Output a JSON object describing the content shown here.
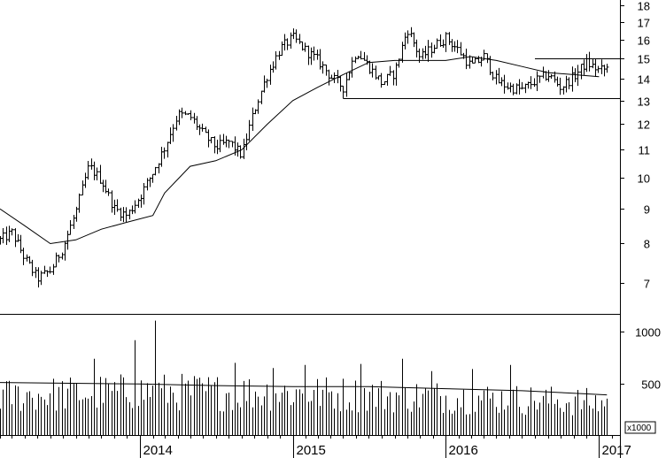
{
  "chart_data": [
    {
      "type": "ohlc",
      "panel": "price",
      "scale": "log",
      "ylim": [
        6.3,
        18.3
      ],
      "y_ticks": [
        "7",
        "8",
        "9",
        "10",
        "11",
        "12",
        "13",
        "14",
        "15",
        "16",
        "17",
        "18"
      ],
      "x_ticks": [
        "2014",
        "2015",
        "2016",
        "2017"
      ],
      "x_range": [
        "2013-02-01",
        "2017-02-20"
      ],
      "price_anchors": [
        [
          "2013-02-01",
          8.1
        ],
        [
          "2013-03-01",
          8.3
        ],
        [
          "2013-04-01",
          7.6
        ],
        [
          "2013-05-01",
          7.1
        ],
        [
          "2013-06-01",
          7.3
        ],
        [
          "2013-07-01",
          7.9
        ],
        [
          "2013-08-01",
          8.9
        ],
        [
          "2013-09-01",
          10.4
        ],
        [
          "2013-10-01",
          9.9
        ],
        [
          "2013-11-01",
          9.0
        ],
        [
          "2013-12-01",
          8.8
        ],
        [
          "2014-01-01",
          9.4
        ],
        [
          "2014-02-01",
          10.2
        ],
        [
          "2014-03-01",
          11.1
        ],
        [
          "2014-04-01",
          12.4
        ],
        [
          "2014-05-01",
          12.3
        ],
        [
          "2014-06-01",
          11.6
        ],
        [
          "2014-07-01",
          11.1
        ],
        [
          "2014-08-01",
          11.3
        ],
        [
          "2014-09-01",
          10.8
        ],
        [
          "2014-10-01",
          12.6
        ],
        [
          "2014-11-01",
          14.2
        ],
        [
          "2014-12-01",
          15.5
        ],
        [
          "2015-01-01",
          16.1
        ],
        [
          "2015-02-01",
          15.4
        ],
        [
          "2015-03-01",
          14.9
        ],
        [
          "2015-04-01",
          14.1
        ],
        [
          "2015-05-01",
          13.6
        ],
        [
          "2015-06-01",
          15.4
        ],
        [
          "2015-07-01",
          14.6
        ],
        [
          "2015-08-01",
          13.8
        ],
        [
          "2015-09-01",
          14.3
        ],
        [
          "2015-10-01",
          16.6
        ],
        [
          "2015-11-01",
          15.0
        ],
        [
          "2015-12-01",
          15.6
        ],
        [
          "2016-01-01",
          16.1
        ],
        [
          "2016-02-01",
          15.4
        ],
        [
          "2016-03-01",
          14.6
        ],
        [
          "2016-04-01",
          15.1
        ],
        [
          "2016-05-01",
          13.9
        ],
        [
          "2016-06-01",
          13.6
        ],
        [
          "2016-07-01",
          13.5
        ],
        [
          "2016-08-01",
          13.9
        ],
        [
          "2016-09-01",
          14.2
        ],
        [
          "2016-10-01",
          13.6
        ],
        [
          "2016-11-01",
          14.1
        ],
        [
          "2016-12-01",
          14.8
        ],
        [
          "2017-01-01",
          14.4
        ],
        [
          "2017-01-20",
          14.5
        ]
      ],
      "moving_average_anchors": [
        [
          "2013-02-01",
          9.0
        ],
        [
          "2013-04-01",
          8.5
        ],
        [
          "2013-06-01",
          8.0
        ],
        [
          "2013-08-01",
          8.1
        ],
        [
          "2013-10-01",
          8.4
        ],
        [
          "2013-12-01",
          8.6
        ],
        [
          "2014-02-01",
          8.8
        ],
        [
          "2014-03-01",
          9.5
        ],
        [
          "2014-05-01",
          10.4
        ],
        [
          "2014-07-01",
          10.6
        ],
        [
          "2014-09-01",
          11.0
        ],
        [
          "2014-11-01",
          12.0
        ],
        [
          "2015-01-01",
          13.0
        ],
        [
          "2015-03-01",
          13.6
        ],
        [
          "2015-05-01",
          14.2
        ],
        [
          "2015-07-01",
          14.8
        ],
        [
          "2015-09-01",
          14.9
        ],
        [
          "2015-11-01",
          14.9
        ],
        [
          "2016-01-01",
          14.9
        ],
        [
          "2016-03-01",
          15.1
        ],
        [
          "2016-05-01",
          14.9
        ],
        [
          "2016-07-01",
          14.6
        ],
        [
          "2016-09-01",
          14.3
        ],
        [
          "2016-11-01",
          14.2
        ],
        [
          "2017-01-01",
          14.1
        ]
      ],
      "horizontal_lines": [
        {
          "value": 13.1,
          "from": "2015-05-01",
          "to": "2017-02-20"
        },
        {
          "value": 15.0,
          "from": "2016-08-01",
          "to": "2017-02-20"
        }
      ],
      "grid": false
    },
    {
      "type": "bar",
      "panel": "volume",
      "unit": "x1000",
      "ylim": [
        0,
        1150
      ],
      "y_ticks": [
        "500",
        "1000"
      ],
      "volume_base_anchors": [
        [
          "2013-02-01",
          380
        ],
        [
          "2014-01-01",
          420
        ],
        [
          "2015-01-01",
          410
        ],
        [
          "2016-01-01",
          370
        ],
        [
          "2016-10-01",
          330
        ],
        [
          "2017-01-20",
          310
        ]
      ],
      "volume_spikes": [
        [
          "2014-02-07",
          1110
        ],
        [
          "2013-12-20",
          920
        ],
        [
          "2013-09-13",
          740
        ],
        [
          "2014-08-15",
          700
        ],
        [
          "2015-01-30",
          680
        ],
        [
          "2015-06-12",
          690
        ],
        [
          "2016-06-03",
          680
        ],
        [
          "2015-09-18",
          740
        ],
        [
          "2015-11-27",
          620
        ],
        [
          "2016-03-04",
          640
        ],
        [
          "2014-11-14",
          650
        ]
      ],
      "average_anchors": [
        [
          "2013-02-01",
          510
        ],
        [
          "2014-01-01",
          495
        ],
        [
          "2014-07-01",
          480
        ],
        [
          "2015-01-01",
          470
        ],
        [
          "2015-07-01",
          470
        ],
        [
          "2016-01-01",
          450
        ],
        [
          "2016-07-01",
          430
        ],
        [
          "2017-01-20",
          390
        ]
      ],
      "grid": false
    }
  ]
}
